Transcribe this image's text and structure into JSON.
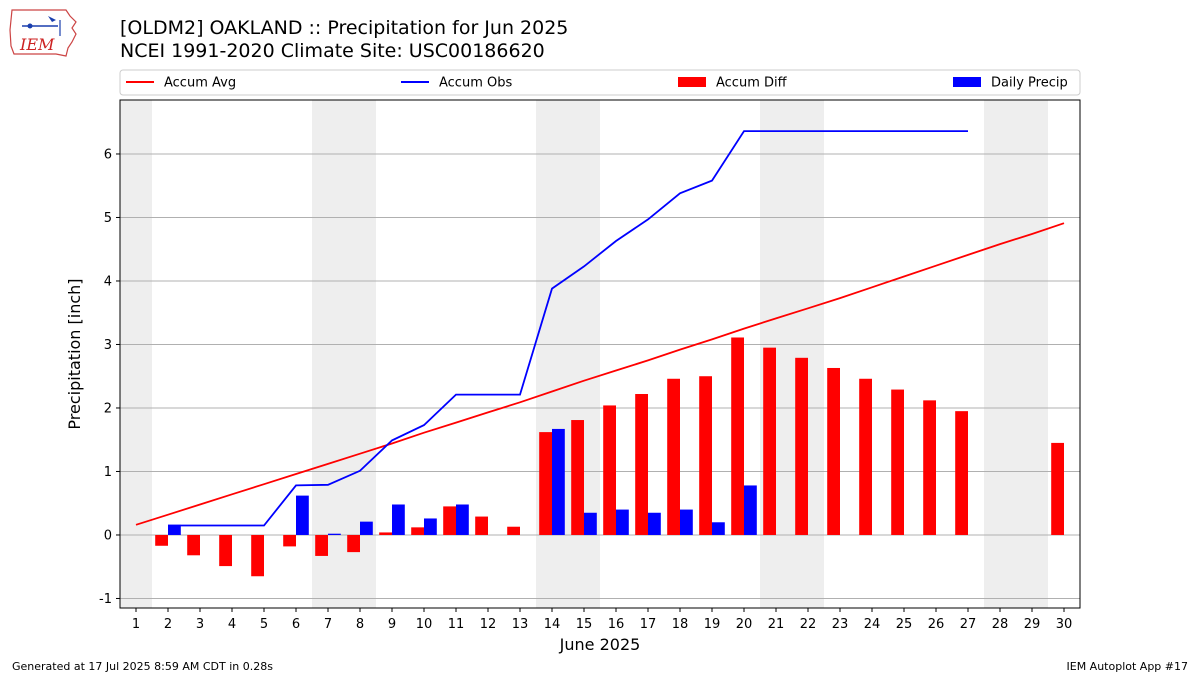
{
  "header": {
    "logo_text": "IEM",
    "title_line1": "[OLDM2] OAKLAND :: Precipitation for Jun 2025",
    "title_line2": "NCEI 1991-2020 Climate Site: USC00186620"
  },
  "footer": {
    "generated": "Generated at 17 Jul 2025 8:59 AM CDT in 0.28s",
    "app": "IEM Autoplot App #17"
  },
  "colors": {
    "accum_avg": "#ff0000",
    "accum_obs": "#0000ff",
    "accum_diff": "#ff0000",
    "daily_precip": "#0000ff",
    "weekend_band": "#eeeeee",
    "grid": "#b0b0b0"
  },
  "chart_data": {
    "type": "bar",
    "xlabel": "June 2025",
    "ylabel": "Precipitation [inch]",
    "ylim": [
      -1.15,
      6.85
    ],
    "yticks": [
      -1,
      0,
      1,
      2,
      3,
      4,
      5,
      6
    ],
    "xlim": [
      0.5,
      30.5
    ],
    "grid": "horizontal",
    "legend_position": "top",
    "days": [
      1,
      2,
      3,
      4,
      5,
      6,
      7,
      8,
      9,
      10,
      11,
      12,
      13,
      14,
      15,
      16,
      17,
      18,
      19,
      20,
      21,
      22,
      23,
      24,
      25,
      26,
      27,
      28,
      29,
      30
    ],
    "weekend_bands": [
      [
        0.5,
        1.5
      ],
      [
        6.5,
        8.5
      ],
      [
        13.5,
        15.5
      ],
      [
        20.5,
        22.5
      ],
      [
        27.5,
        29.5
      ]
    ],
    "series": [
      {
        "name": "Accum Avg",
        "kind": "line",
        "x": [
          1,
          2,
          3,
          4,
          5,
          6,
          7,
          8,
          9,
          10,
          11,
          12,
          13,
          14,
          15,
          16,
          17,
          18,
          19,
          20,
          21,
          22,
          23,
          24,
          25,
          26,
          27,
          28,
          29,
          30
        ],
        "values": [
          0.16,
          0.32,
          0.48,
          0.64,
          0.8,
          0.96,
          1.12,
          1.28,
          1.44,
          1.61,
          1.77,
          1.93,
          2.09,
          2.26,
          2.43,
          2.59,
          2.75,
          2.92,
          3.08,
          3.25,
          3.41,
          3.57,
          3.73,
          3.9,
          4.07,
          4.24,
          4.41,
          4.58,
          4.74,
          4.91
        ]
      },
      {
        "name": "Accum Obs",
        "kind": "line",
        "x": [
          2,
          3,
          4,
          5,
          6,
          7,
          8,
          9,
          10,
          11,
          12,
          13,
          14,
          15,
          16,
          17,
          18,
          19,
          20,
          21,
          22,
          23,
          24,
          25,
          26,
          27
        ],
        "values": [
          0.15,
          0.15,
          0.15,
          0.15,
          0.78,
          0.79,
          1.01,
          1.49,
          1.73,
          2.21,
          2.21,
          2.21,
          3.88,
          4.23,
          4.63,
          4.97,
          5.38,
          5.58,
          6.36,
          6.36,
          6.36,
          6.36,
          6.36,
          6.36,
          6.36,
          6.36
        ]
      },
      {
        "name": "Accum Diff",
        "kind": "bar",
        "x": [
          2,
          3,
          4,
          5,
          6,
          7,
          8,
          9,
          10,
          11,
          12,
          13,
          14,
          15,
          16,
          17,
          18,
          19,
          20,
          21,
          22,
          23,
          24,
          25,
          26,
          27,
          30
        ],
        "values": [
          -0.17,
          -0.32,
          -0.49,
          -0.65,
          -0.18,
          -0.33,
          -0.27,
          0.04,
          0.12,
          0.45,
          0.29,
          0.13,
          1.62,
          1.81,
          2.04,
          2.22,
          2.46,
          2.5,
          3.11,
          2.95,
          2.79,
          2.63,
          2.46,
          2.29,
          2.12,
          1.95,
          1.45
        ]
      },
      {
        "name": "Daily Precip",
        "kind": "bar",
        "x": [
          2,
          6,
          7,
          8,
          9,
          10,
          11,
          14,
          15,
          16,
          17,
          18,
          19,
          20
        ],
        "values": [
          0.16,
          0.62,
          0.02,
          0.21,
          0.48,
          0.26,
          0.48,
          1.67,
          0.35,
          0.4,
          0.35,
          0.4,
          0.2,
          0.78
        ]
      }
    ]
  }
}
